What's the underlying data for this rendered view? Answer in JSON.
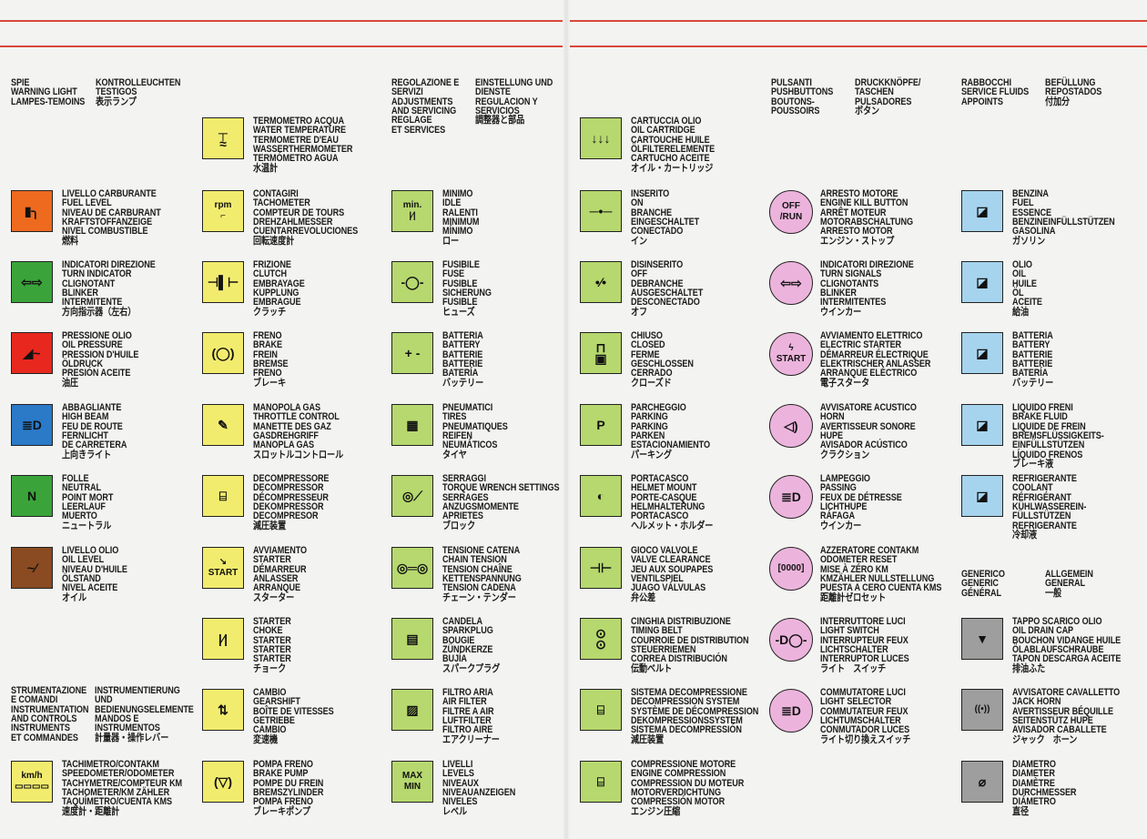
{
  "colors": {
    "rule": "#d8483a",
    "orange": "#ee6a1e",
    "green_light": "#3aa43a",
    "red": "#e8281e",
    "blue_light": "#2a7ac8",
    "brown": "#8a4a22",
    "yellow": "#f2ec6e",
    "green": "#b6d86e",
    "pink": "#ecb4dc",
    "blue": "#a6d4ee",
    "gray": "#9e9e9e"
  },
  "headers": {
    "warning_a": "SPIE\nWARNING LIGHT\nLAMPES-TEMOINS",
    "warning_b": "KONTROLLEUCHTEN\nTESTIGOS\n表示ランプ",
    "instruments_a": "STRUMENTAZIONE\nE COMANDI\nINSTRUMENTATION\nAND CONTROLS\nINSTRUMENTS\nET COMMANDES",
    "instruments_b": "INSTRUMENTIERUNG\nUND\nBEDIENUNGSELEMENTE\nMANDOS E\nINSTRUMENTOS\n計量器・操作レバー",
    "adjust_a": "REGOLAZIONE E\nSERVIZI\nADJUSTMENTS\nAND SERVICING\nREGLAGE\nET SERVICES",
    "adjust_b": "EINSTELLUNG UND\nDIENSTE\nREGULACION Y\nSERVICIOS\n調整器と部品",
    "push_a": "PULSANTI\nPUSHBUTTONS\nBOUTONS-\nPOUSSOIRS",
    "push_b": "DRUCKKNÖPFE/\nTASCHEN\nPULSADORES\nボタン",
    "fluids_a": "RABBOCCHI\nSERVICE FLUIDS\nAPPOINTS",
    "fluids_b": "BEFÜLLUNG\nREPOSTADOS\n付加分",
    "generic_a": "GENERICO\nGENERIC\nGÉNÉRAL",
    "generic_b": "ALLGEMEIN\nGENERAL\n一般"
  },
  "columns": [
    {
      "items": [
        {
          "icon": "fuel-pump",
          "color": "orange",
          "text": "LIVELLO CARBURANTE\nFUEL LEVEL\nNIVEAU DE CARBURANT\nKRAFTSTOFFANZEIGE\nNIVEL COMBUSTIBLE\n燃料"
        },
        {
          "icon": "turn-indicator",
          "color": "green_light",
          "text": "INDICATORI DIREZIONE\nTURN INDICATOR\nCLIGNOTANT\nBLINKER\nINTERMITENTE\n方向指示器（左右）"
        },
        {
          "icon": "oil-pressure",
          "color": "red",
          "text": "PRESSIONE OLIO\nOIL PRESSURE\nPRESSION D'HUILE\nÖLDRUCK\nPRESIÓN ACEITE\n油圧"
        },
        {
          "icon": "high-beam",
          "color": "blue_light",
          "text": "ABBAGLIANTE\nHIGH BEAM\nFEU DE ROUTE\nFERNLICHT\nDE CARRETERA\n上向きライト"
        },
        {
          "icon": "neutral",
          "color": "green_light",
          "text": "FOLLE\nNEUTRAL\nPOINT MORT\nLEERLAUF\nMUERTO\nニュートラル"
        },
        {
          "icon": "oil-level",
          "color": "brown",
          "text": "LIVELLO OLIO\nOIL LEVEL\nNIVEAU D'HUILE\nÖLSTAND\nNIVEL ACEITE\nオイル"
        },
        {
          "icon": "speedometer",
          "color": "yellow",
          "text": "TACHIMETRO/CONTAKM\nSPEEDOMETER/ODOMETER\nTACHYMETRE/COMPTEUR KM\nTACHOMETER/KM ZÄHLER\nTAQUÍMETRO/CUENTA KMS\n速度計・距離計"
        }
      ]
    },
    {
      "items": [
        {
          "icon": "water-temperature",
          "color": "yellow",
          "text": "TERMOMETRO ACQUA\nWATER TEMPERATURE\nTERMOMETRE D'EAU\nWASSERTHERMOMETER\nTERMÓMETRO AGUA\n水温計"
        },
        {
          "icon": "tachometer",
          "color": "yellow",
          "text": "CONTAGIRI\nTACHOMETER\nCOMPTEUR DE TOURS\nDREHZAHLMESSER\nCUENTARREVOLUCIONES\n回転速度計"
        },
        {
          "icon": "clutch",
          "color": "yellow",
          "text": "FRIZIONE\nCLUTCH\nEMBRAYAGE\nKUPPLUNG\nEMBRAGUE\nクラッチ"
        },
        {
          "icon": "brake",
          "color": "yellow",
          "text": "FRENO\nBRAKE\nFREIN\nBREMSE\nFRENO\nブレーキ"
        },
        {
          "icon": "throttle",
          "color": "yellow",
          "text": "MANOPOLA GAS\nTHROTTLE CONTROL\nMANETTE DES GAZ\nGASDREHGRIFF\nMANOPLA GAS\nスロットルコントロール"
        },
        {
          "icon": "decompressor",
          "color": "yellow",
          "text": "DECOMPRESSORE\nDECOMPRESSOR\nDÉCOMPRESSEUR\nDEKOMPRESSOR\nDECOMPRESOR\n減圧装置"
        },
        {
          "icon": "starter",
          "color": "yellow",
          "text": "AVVIAMENTO\nSTARTER\nDÉMARREUR\nANLASSER\nARRANQUE\nスターター"
        },
        {
          "icon": "choke",
          "color": "yellow",
          "text": "STARTER\nCHOKE\nSTARTER\nSTARTER\nSTARTER\nチョーク"
        },
        {
          "icon": "gearshift",
          "color": "yellow",
          "text": "CAMBIO\nGEARSHIFT\nBOÎTE DE VITESSES\nGETRIEBE\nCAMBIO\n変速機"
        },
        {
          "icon": "brake-pump",
          "color": "yellow",
          "text": "POMPA FRENO\nBRAKE PUMP\nPOMPE DU FREIN\nBREMSZYLINDER\nPOMPA FRENO\nブレーキポンプ"
        }
      ]
    },
    {
      "items": [
        {
          "icon": "idle",
          "color": "green",
          "text": "MINIMO\nIDLE\nRALENTI\nMINIMUM\nMÍNIMO\nロー"
        },
        {
          "icon": "fuse",
          "color": "green",
          "text": "FUSIBILE\nFUSE\nFUSIBLE\nSICHERUNG\nFUSIBLE\nヒューズ"
        },
        {
          "icon": "battery",
          "color": "green",
          "text": "BATTERIA\nBATTERY\nBATTERIE\nBATTERIE\nBATERÍA\nバッテリー"
        },
        {
          "icon": "tires",
          "color": "green",
          "text": "PNEUMATICI\nTIRES\nPNEUMATIQUES\nREIFEN\nNEUMÁTICOS\nタイヤ"
        },
        {
          "icon": "torque-wrench",
          "color": "green",
          "text": "SERRAGGI\nTORQUE WRENCH SETTINGS\nSERRAGES\nANZUGSMOMENTE\nAPRIETES\nブロック"
        },
        {
          "icon": "chain-tension",
          "color": "green",
          "text": "TENSIONE CATENA\nCHAIN TENSION\nTENSION CHAÎNE\nKETTENSPANNUNG\nTENSION CADENA\nチェーン・テンダー"
        },
        {
          "icon": "sparkplug",
          "color": "green",
          "text": "CANDELA\nSPARKPLUG\nBOUGIE\nZÜNDKERZE\nBUJÍA\nスパークプラグ"
        },
        {
          "icon": "air-filter",
          "color": "green",
          "text": "FILTRO ARIA\nAIR FILTER\nFILTRE A AIR\nLUFTFILTER\nFILTRO AIRE\nエアクリーナー"
        },
        {
          "icon": "levels",
          "color": "green",
          "text": "LIVELLI\nLEVELS\nNIVEAUX\nNIVEAUANZEIGEN\nNIVELES\nレベル"
        }
      ]
    },
    {
      "items": [
        {
          "icon": "oil-cartridge",
          "color": "green",
          "text": "CARTUCCIA OLIO\nOIL CARTRIDGE\nCARTOUCHE HUILE\nÖLFILTERELEMENTE\nCARTUCHO ACEITE\nオイル・カートリッジ"
        },
        {
          "icon": "switch-on",
          "color": "green",
          "text": "INSERITO\nON\nBRANCHE\nEINGESCHALTET\nCONECTADO\nイン"
        },
        {
          "icon": "switch-off",
          "color": "green",
          "text": "DISINSERITO\nOFF\nDEBRANCHE\nAUSGESCHALTET\nDESCONECTADO\nオフ"
        },
        {
          "icon": "lock",
          "color": "green",
          "text": "CHIUSO\nCLOSED\nFERME\nGESCHLOSSEN\nCERRADO\nクローズド"
        },
        {
          "icon": "parking",
          "color": "green",
          "text": "PARCHEGGIO\nPARKING\nPARKING\nPARKEN\nESTACIONAMIENTO\nパーキング"
        },
        {
          "icon": "helmet",
          "color": "green",
          "text": "PORTACASCO\nHELMET MOUNT\nPORTE-CASQUE\nHELMHALTERUNG\nPORTACASCO\nヘルメット・ホルダー"
        },
        {
          "icon": "valve-clearance",
          "color": "green",
          "text": "GIOCO VALVOLE\nVALVE CLEARANCE\nJEU AUX SOUPAPES\nVENTILSPIEL\nJUAGO VÁLVULAS\n弁公差"
        },
        {
          "icon": "timing-belt",
          "color": "green",
          "text": "CINGHIA DISTRIBUZIONE\nTIMING BELT\nCOURROIE DE DISTRIBUTION\nSTEUERRIEMEN\nCORREA DISTRIBUCIÓN\n伝動ベルト"
        },
        {
          "icon": "decompression-system",
          "color": "green",
          "text": "SISTEMA DECOMPRESSIONE\nDECOMPRESSION SYSTEM\nSYSTÈME DE DÉCOMPRESSION\nDEKOMPRESSIONSSYSTEM\nSISTEMA DECOMPRESSIÓN\n減圧装置"
        },
        {
          "icon": "engine-compression",
          "color": "green",
          "text": "COMPRESSIONE MOTORE\nENGINE COMPRESSION\nCOMPRESSION DU MOTEUR\nMOTORVERDICHTUNG\nCOMPRESSIÓN MOTOR\nエンジン圧縮"
        }
      ]
    },
    {
      "items": [
        {
          "icon": "off-run",
          "color": "pink",
          "text": "ARRESTO MOTORE\nENGINE KILL BUTTON\nARRÊT MOTEUR\nMOTORABSCHALTUNG\nARRESTO MOTOR\nエンジン・ストップ"
        },
        {
          "icon": "turn-signals",
          "color": "pink",
          "text": "INDICATORI DIREZIONE\nTURN SIGNALS\nCLIGNOTANTS\nBLINKER\nINTERMITENTES\nウインカー"
        },
        {
          "icon": "electric-starter",
          "color": "pink",
          "text": "AVVIAMENTO ELETTRICO\nELECTRIC STARTER\nDÉMARREUR ÉLECTRIQUE\nELEKTRISCHER ANLASSER\nARRANQUE ELÉCTRICO\n電子スタータ"
        },
        {
          "icon": "horn",
          "color": "pink",
          "text": "AVVISATORE ACUSTICO\nHORN\nAVERTISSEUR SONORE\nHUPE\nAVISADOR ACÚSTICO\nクラクション"
        },
        {
          "icon": "passing",
          "color": "pink",
          "text": "LAMPEGGIO\nPASSING\nFEUX DE DÉTRESSE\nLICHTHUPE\nRÁFAGA\nウインカー"
        },
        {
          "icon": "odometer-reset",
          "color": "pink",
          "text": "AZZERATORE CONTAKM\nODOMETER RESET\nMISE À ZÉRO KM\nKMZÄHLER NULLSTELLUNG\nPUESTA A CERO CUENTA KMS\n距離計ゼロセット"
        },
        {
          "icon": "light-switch",
          "color": "pink",
          "text": "INTERRUTTORE LUCI\nLIGHT SWITCH\nINTERRUPTEUR FEUX\nLICHTSCHALTER\nINTERRUPTOR LUCES\nライト　スイッチ"
        },
        {
          "icon": "light-selector",
          "color": "pink",
          "text": "COMMUTATORE LUCI\nLIGHT SELECTOR\nCOMMUTATEUR FEUX\nLICHTUMSCHALTER\nCONMUTADOR LUCES\nライト切り換えスイッチ"
        }
      ]
    },
    {
      "items": [
        {
          "icon": "fuel-can",
          "color": "blue",
          "text": "BENZINA\nFUEL\nESSENCE\nBENZINEINFÜLLSTÜTZEN\nGASOLINA\nガソリン"
        },
        {
          "icon": "oil-can",
          "color": "blue",
          "text": "OLIO\nOIL\nHUILE\nÖL\nACEITE\n給油"
        },
        {
          "icon": "battery-fill",
          "color": "blue",
          "text": "BATTERIA\nBATTERY\nBATTERIE\nBATTERIE\nBATERÍA\nバッテリー"
        },
        {
          "icon": "brake-fluid",
          "color": "blue",
          "text": "LIQUIDO FRENI\nBRAKE FLUID\nLIQUIDE DE FREIN\nBREMSFLÜSSIGKEITS-\nEINFÜLLSTÜTZEN\nLÍQUIDO FRENOS\nブレーキ液"
        },
        {
          "icon": "coolant",
          "color": "blue",
          "text": "REFRIGERANTE\nCOOLANT\nRÉFRIGÉRANT\nKÜHLWASSEREIN-\nFÜLLSTÜTZEN\nREFRIGERANTE\n冷却液"
        },
        {
          "icon": "oil-drain-cap",
          "color": "gray",
          "text": "TAPPO SCARICO OLIO\nOIL DRAIN CAP\nBOUCHON VIDANGE HUILE\nÖLABLAUFSCHRAUBE\nTAPON DESCARGA ACEITE\n排油ふた"
        },
        {
          "icon": "jack-horn",
          "color": "gray",
          "text": "AVVISATORE CAVALLETTO\nJACK HORN\nAVERTISSEUR BÉQUILLE\nSEITENSTÜTZ HUPE\nAVISADOR CABALLETE\nジャック　ホーン"
        },
        {
          "icon": "diameter",
          "color": "gray",
          "text": "DIAMETRO\nDIAMETER\nDIAMÈTRE\nDURCHMESSER\nDIÁMETRO\n直径"
        }
      ]
    }
  ]
}
